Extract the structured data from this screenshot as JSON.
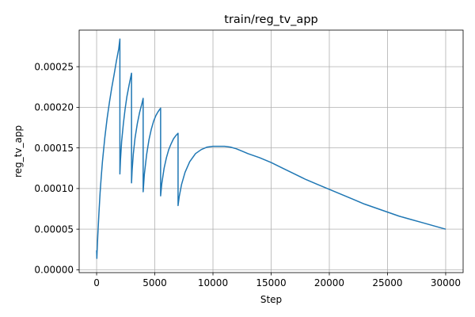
{
  "chart_data": {
    "type": "line",
    "title": "train/reg_tv_app",
    "xlabel": "Step",
    "ylabel": "reg_tv_app",
    "xlim": [
      -1500,
      31500
    ],
    "ylim": [
      -3.5e-06,
      0.000295
    ],
    "grid": true,
    "xticks": [
      0,
      5000,
      10000,
      15000,
      20000,
      25000,
      30000
    ],
    "xtick_labels": [
      "0",
      "5000",
      "10000",
      "15000",
      "20000",
      "25000",
      "30000"
    ],
    "yticks": [
      0,
      5e-05,
      0.0001,
      0.00015,
      0.0002,
      0.00025
    ],
    "ytick_labels": [
      "0.00000",
      "0.00005",
      "0.00010",
      "0.00015",
      "0.00020",
      "0.00025"
    ],
    "series": [
      {
        "color": "#1f77b4",
        "x": [
          0,
          20,
          40,
          100,
          200,
          300,
          400,
          500,
          700,
          900,
          1100,
          1300,
          1500,
          1700,
          1900,
          2000,
          2000,
          2050,
          2150,
          2300,
          2450,
          2600,
          2800,
          3000,
          3000,
          3050,
          3150,
          3300,
          3500,
          3700,
          3900,
          4000,
          4000,
          4100,
          4300,
          4500,
          4700,
          4900,
          5100,
          5300,
          5500,
          5500,
          5600,
          5800,
          6000,
          6200,
          6400,
          6600,
          6800,
          7000,
          7000,
          7100,
          7300,
          7600,
          8000,
          8500,
          9000,
          9500,
          10000,
          10500,
          11000,
          11500,
          12000,
          12500,
          13000,
          14000,
          15000,
          16000,
          17000,
          18000,
          19000,
          20000,
          21000,
          22000,
          23000,
          24000,
          25000,
          26000,
          27000,
          28000,
          29000,
          30000
        ],
        "y": [
          2.4e-05,
          1.4e-05,
          2.2e-05,
          4.2e-05,
          7e-05,
          9.5e-05,
          0.000115,
          0.000133,
          0.000162,
          0.000186,
          0.000206,
          0.000224,
          0.00024,
          0.000257,
          0.000272,
          0.000284,
          0.000118,
          0.000135,
          0.000158,
          0.00018,
          0.000198,
          0.000213,
          0.000228,
          0.000242,
          0.000107,
          0.000122,
          0.000142,
          0.000162,
          0.00018,
          0.000194,
          0.000205,
          0.000211,
          9.6e-05,
          0.000117,
          0.000142,
          0.00016,
          0.000173,
          0.000183,
          0.00019,
          0.000195,
          0.000199,
          9.1e-05,
          0.000106,
          0.000125,
          0.000138,
          0.000148,
          0.000155,
          0.000161,
          0.000165,
          0.000168,
          7.9e-05,
          9e-05,
          0.000105,
          0.00012,
          0.000133,
          0.000143,
          0.000148,
          0.000151,
          0.000152,
          0.000152,
          0.000152,
          0.000151,
          0.000149,
          0.000146,
          0.000143,
          0.000138,
          0.000132,
          0.000125,
          0.000118,
          0.000111,
          0.000105,
          9.9e-05,
          9.3e-05,
          8.7e-05,
          8.1e-05,
          7.6e-05,
          7.1e-05,
          6.6e-05,
          6.2e-05,
          5.8e-05,
          5.4e-05,
          5e-05
        ]
      }
    ]
  }
}
